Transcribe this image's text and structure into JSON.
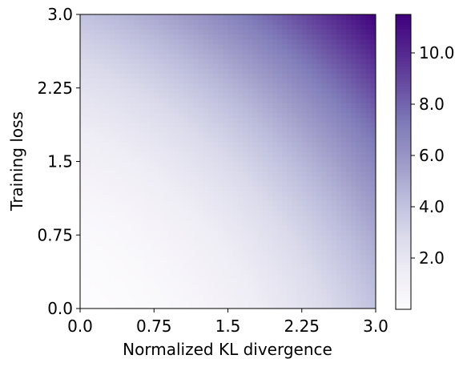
{
  "chart_data": {
    "type": "heatmap",
    "title": "",
    "xlabel": "Normalized KL divergence",
    "ylabel": "Training loss",
    "xlim": [
      0.0,
      3.0
    ],
    "ylim": [
      0.0,
      3.0
    ],
    "x_ticks": [
      0.0,
      0.75,
      1.5,
      2.25,
      3.0
    ],
    "x_tick_labels": [
      "0.0",
      "0.75",
      "1.5",
      "2.25",
      "3.0"
    ],
    "y_ticks": [
      0.0,
      0.75,
      1.5,
      2.25,
      3.0
    ],
    "y_tick_labels": [
      "0.0",
      "0.75",
      "1.5",
      "2.25",
      "3.0"
    ],
    "colorbar": {
      "range": [
        0.0,
        11.5
      ],
      "ticks": [
        2.0,
        4.0,
        6.0,
        8.0,
        10.0
      ],
      "tick_labels": [
        "2.0",
        "4.0",
        "6.0",
        "8.0",
        "10.0"
      ],
      "colormap": "Purples",
      "colors": [
        "#fcfbfd",
        "#efedf5",
        "#dadaeb",
        "#bcbddc",
        "#9e9ac8",
        "#807dba",
        "#6a51a3",
        "#54278f",
        "#3f007d"
      ]
    },
    "grid": false,
    "surface": "z = 0.45*x^2 + 0.45*y^2 + 0.38*x*y",
    "z_samples": [
      {
        "x": 0.0,
        "y": 0.0,
        "z": 0.0
      },
      {
        "x": 3.0,
        "y": 0.0,
        "z": 4.05
      },
      {
        "x": 0.0,
        "y": 3.0,
        "z": 4.05
      },
      {
        "x": 1.5,
        "y": 1.5,
        "z": 2.88
      },
      {
        "x": 3.0,
        "y": 3.0,
        "z": 11.5
      }
    ]
  }
}
